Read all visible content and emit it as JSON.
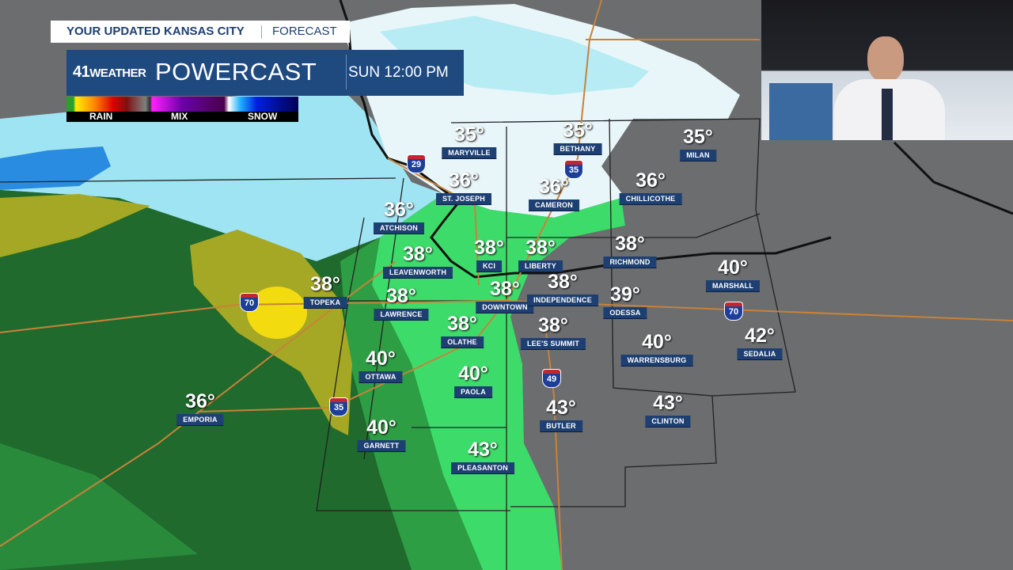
{
  "header": {
    "title": "YOUR UPDATED KANSAS CITY",
    "title_suffix": "FORECAST",
    "logo": {
      "num": "41",
      "text": "WEATHER"
    },
    "product": "POWERCAST",
    "time": "SUN 12:00 PM"
  },
  "legend": {
    "items": [
      "RAIN",
      "MIX",
      "SNOW"
    ]
  },
  "cities": [
    {
      "name": "MARYVILLE",
      "temp": "35°"
    },
    {
      "name": "BETHANY",
      "temp": "35°"
    },
    {
      "name": "MILAN",
      "temp": "35°"
    },
    {
      "name": "ST. JOSEPH",
      "temp": "36°"
    },
    {
      "name": "CAMERON",
      "temp": "36°"
    },
    {
      "name": "CHILLICOTHE",
      "temp": "36°"
    },
    {
      "name": "ATCHISON",
      "temp": "36°"
    },
    {
      "name": "LEAVENWORTH",
      "temp": "38°"
    },
    {
      "name": "KCI",
      "temp": "38°"
    },
    {
      "name": "LIBERTY",
      "temp": "38°"
    },
    {
      "name": "RICHMOND",
      "temp": "38°"
    },
    {
      "name": "MARSHALL",
      "temp": "40°"
    },
    {
      "name": "TOPEKA",
      "temp": "38°"
    },
    {
      "name": "LAWRENCE",
      "temp": "38°"
    },
    {
      "name": "DOWNTOWN",
      "temp": "38°"
    },
    {
      "name": "INDEPENDENCE",
      "temp": "38°"
    },
    {
      "name": "ODESSA",
      "temp": "39°"
    },
    {
      "name": "SEDALIA",
      "temp": "42°"
    },
    {
      "name": "OLATHE",
      "temp": "38°"
    },
    {
      "name": "LEE'S SUMMIT",
      "temp": "38°"
    },
    {
      "name": "WARRENSBURG",
      "temp": "40°"
    },
    {
      "name": "OTTAWA",
      "temp": "40°"
    },
    {
      "name": "PAOLA",
      "temp": "40°"
    },
    {
      "name": "EMPORIA",
      "temp": "36°"
    },
    {
      "name": "BUTLER",
      "temp": "43°"
    },
    {
      "name": "CLINTON",
      "temp": "43°"
    },
    {
      "name": "GARNETT",
      "temp": "40°"
    },
    {
      "name": "PLEASANTON",
      "temp": "43°"
    }
  ],
  "highways": [
    "70",
    "70",
    "35",
    "35",
    "29",
    "49"
  ],
  "colors": {
    "rain_green": "#1f6a2c",
    "light_green": "#3ddc6a",
    "snow": "#e8f6fa",
    "label_bg": "#1d3f72"
  }
}
